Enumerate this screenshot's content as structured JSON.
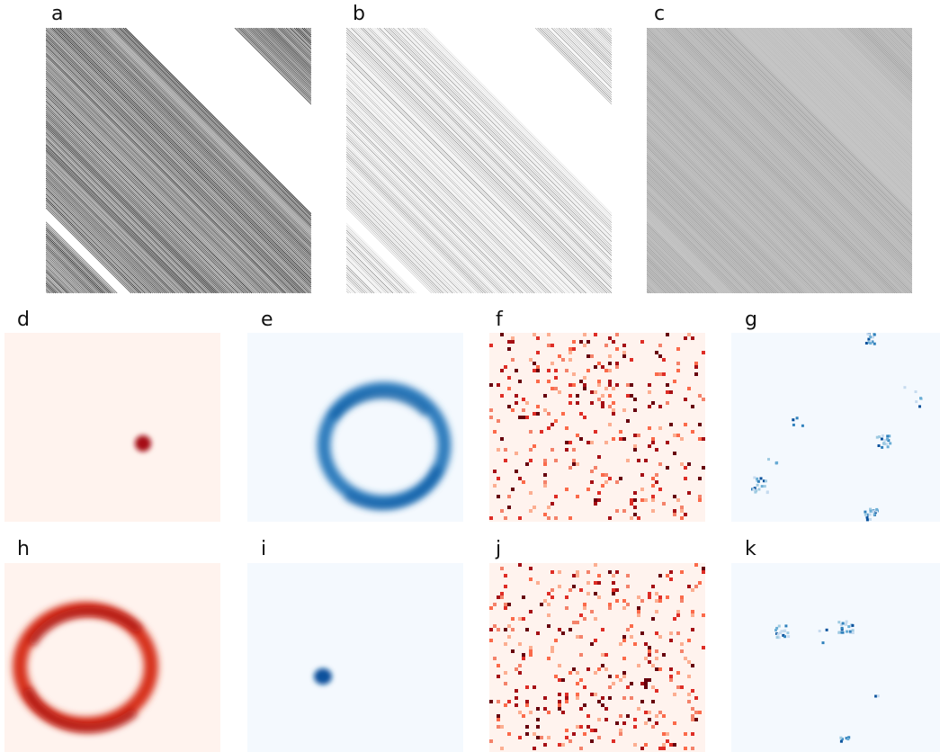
{
  "figure": {
    "labels": {
      "a": "a",
      "b": "b",
      "c": "c",
      "d": "d",
      "e": "e",
      "f": "f",
      "g": "g",
      "h": "h",
      "i": "i",
      "j": "j",
      "k": "k"
    },
    "colors": {
      "reds_light": "#fff3ee",
      "reds_dark": "#a50f15",
      "reds_mid": "#d7301f",
      "blues_light": "#f4f9fe",
      "blues_dark": "#08519c",
      "blues_mid": "#2f7dbd",
      "gray_bg": "#c8c8c8",
      "line_dark": "#111111"
    }
  }
}
